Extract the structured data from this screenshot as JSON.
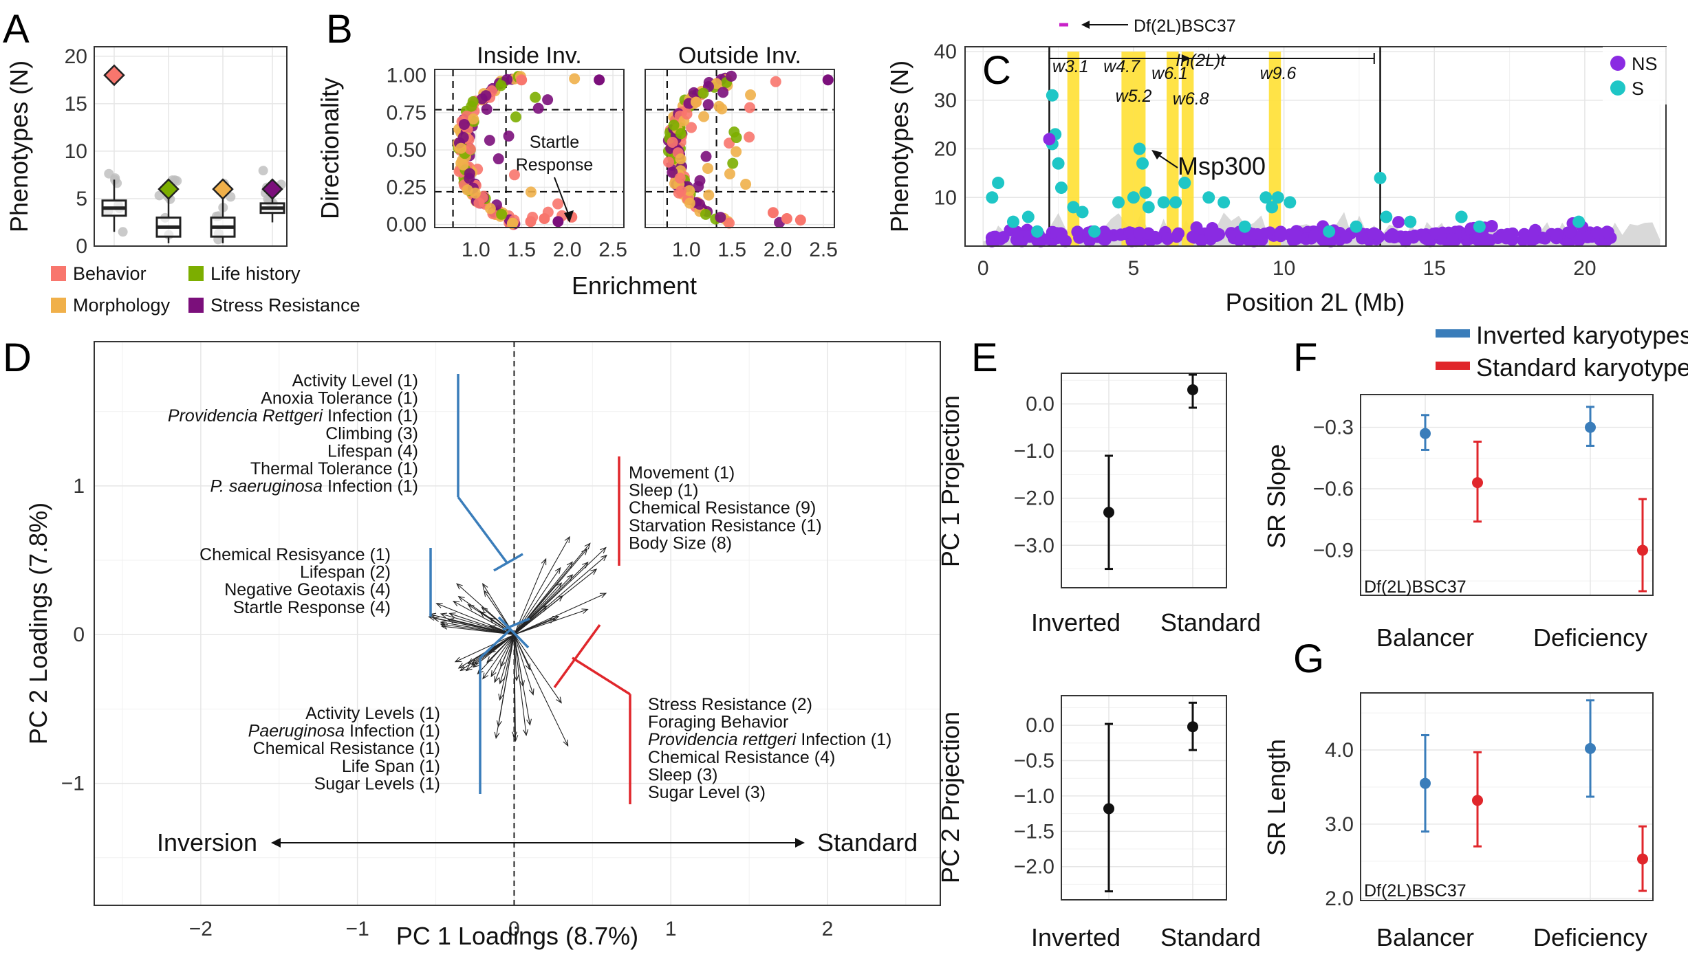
{
  "panel_letters": {
    "A": "A",
    "B": "B",
    "C": "C",
    "D": "D",
    "E": "E",
    "F": "F",
    "G": "G"
  },
  "colors": {
    "behavior": "#F8766D",
    "life_history": "#7CAE00",
    "morphology": "#F0B04A",
    "stress_resistance": "#7B0F7B",
    "ns": "#8A2BE2",
    "s": "#1EC6C6",
    "inverted": "#3A7DBA",
    "standard": "#E0262B",
    "highlight": "#FFE033",
    "deficiency_bar": "#C822C8"
  },
  "chart_data": [
    {
      "id": "A",
      "type": "box",
      "ylabel": "Phenotypes (N)",
      "yticks": [
        0,
        5,
        10,
        15,
        20
      ],
      "ylim": [
        0,
        21
      ],
      "categories": [
        "Behavior",
        "Life history",
        "Morphology",
        "Stress Resistance"
      ],
      "boxes": [
        {
          "q1": 3.2,
          "median": 4,
          "q3": 4.8,
          "lo": 1.5,
          "hi": 7,
          "highlight": 18
        },
        {
          "q1": 1,
          "median": 2,
          "q3": 3,
          "lo": 0.3,
          "hi": 5.5,
          "highlight": 6
        },
        {
          "q1": 1,
          "median": 2,
          "q3": 3,
          "lo": 0.3,
          "hi": 5,
          "highlight": 6
        },
        {
          "q1": 3.5,
          "median": 4,
          "q3": 4.5,
          "lo": 2.5,
          "hi": 6.5,
          "highlight": 6
        }
      ],
      "legend": [
        "Behavior",
        "Life history",
        "Morphology",
        "Stress Resistance"
      ]
    },
    {
      "id": "B",
      "type": "scatter",
      "xlabel": "Enrichment",
      "ylabel": "Directionality",
      "facets": [
        "Inside Inv.",
        "Outside Inv."
      ],
      "xticks": [
        1.0,
        1.5,
        2.0,
        2.5
      ],
      "yticks": [
        0.0,
        0.25,
        0.5,
        0.75,
        1.0
      ],
      "xlim": [
        0.55,
        2.62
      ],
      "ylim": [
        -0.02,
        1.04
      ],
      "annotation": "Startle Response"
    },
    {
      "id": "C",
      "type": "scatter",
      "xlabel": "Position 2L (Mb)",
      "ylabel": "Phenotypes (N)",
      "xticks": [
        0,
        5,
        10,
        15,
        20
      ],
      "yticks": [
        10,
        20,
        30,
        40
      ],
      "xlim": [
        -0.6,
        22.7
      ],
      "ylim": [
        0,
        41
      ],
      "series": [
        {
          "name": "NS"
        },
        {
          "name": "S"
        }
      ],
      "windows": [
        {
          "label": "w3.1",
          "start": 2.8,
          "end": 3.2
        },
        {
          "label": "w4.7",
          "start": 4.6,
          "end": 5.0
        },
        {
          "label": "w5.2",
          "start": 5.0,
          "end": 5.4
        },
        {
          "label": "w6.1",
          "start": 6.1,
          "end": 6.5
        },
        {
          "label": "w6.8",
          "start": 6.6,
          "end": 7.0
        },
        {
          "label": "w9.6",
          "start": 9.5,
          "end": 9.9
        }
      ],
      "inversion_label": "In(2L)t",
      "inversion": [
        2.2,
        13.2
      ],
      "deficiency_label": "Df(2L)BSC37",
      "msp_label": "Msp300"
    },
    {
      "id": "D",
      "type": "biplot",
      "xlabel": "PC 1 Loadings (8.7%)",
      "ylabel": "PC 2 Loadings (7.8%)",
      "xticks": [
        -2,
        -1,
        0,
        1,
        2
      ],
      "yticks": [
        -1,
        0,
        1
      ],
      "xlim": [
        -2.68,
        2.72
      ],
      "ylim": [
        -1.82,
        1.97
      ],
      "left_arrow_label": "Inversion",
      "right_arrow_label": "Standard",
      "upper_left": [
        "Activity Level (1)",
        "Anoxia Tolerance (1)",
        "Providencia Rettgeri Infection (1)",
        "Climbing (3)",
        "Lifespan (4)",
        "Thermal Tolerance (1)",
        "P. saeruginosa Infection (1)"
      ],
      "middle_left": [
        "Chemical Resisyance (1)",
        "Lifespan (2)",
        "Negative Geotaxis (4)",
        "Startle Response (4)"
      ],
      "lower_left": [
        "Activity Levels (1)",
        "Paeruginosa Infection (1)",
        "Chemical Resistance (1)",
        "Life Span (1)",
        "Sugar Levels (1)"
      ],
      "upper_right": [
        "Movement (1)",
        "Sleep (1)",
        "Chemical Resistance (9)",
        "Starvation Resistance (1)",
        "Body Size (8)"
      ],
      "lower_right": [
        "Stress Resistance (2)",
        "Foraging Behavior",
        "Providencia rettgeri Infection (1)",
        "Chemical Resistance (4)",
        "Sleep (3)",
        "Sugar Level (3)"
      ]
    },
    {
      "id": "E1",
      "type": "pointrange",
      "ylabel": "PC 1 Projection",
      "categories": [
        "Inverted",
        "Standard"
      ],
      "yticks": [
        -3.0,
        -2.0,
        -1.0,
        0.0
      ],
      "ylim": [
        -3.9,
        0.65
      ],
      "values": [
        {
          "mean": -2.3,
          "lo": -3.5,
          "hi": -1.1
        },
        {
          "mean": 0.3,
          "lo": -0.08,
          "hi": 0.62
        }
      ]
    },
    {
      "id": "E2",
      "type": "pointrange",
      "ylabel": "PC 2 Projection",
      "categories": [
        "Inverted",
        "Standard"
      ],
      "yticks": [
        -2.0,
        -1.5,
        -1.0,
        -0.5,
        0.0
      ],
      "ylim": [
        -2.47,
        0.42
      ],
      "values": [
        {
          "mean": -1.18,
          "lo": -2.35,
          "hi": 0.02
        },
        {
          "mean": -0.02,
          "lo": -0.35,
          "hi": 0.32
        }
      ]
    },
    {
      "id": "F",
      "type": "pointrange",
      "ylabel": "SR Slope",
      "categories": [
        "Balancer",
        "Deficiency"
      ],
      "yticks": [
        -0.9,
        -0.6,
        -0.3
      ],
      "ylim": [
        -1.12,
        -0.14
      ],
      "note": "Df(2L)BSC37",
      "legend": [
        "Inverted karyotypes",
        "Standard karyotypes"
      ],
      "series": [
        {
          "name": "Inverted karyotypes",
          "values": [
            {
              "mean": -0.33,
              "lo": -0.41,
              "hi": -0.24
            },
            {
              "mean": -0.3,
              "lo": -0.39,
              "hi": -0.2
            }
          ]
        },
        {
          "name": "Standard karyotypes",
          "values": [
            {
              "mean": -0.57,
              "lo": -0.76,
              "hi": -0.37
            },
            {
              "mean": -0.9,
              "lo": -1.1,
              "hi": -0.65
            }
          ]
        }
      ]
    },
    {
      "id": "G",
      "type": "pointrange",
      "ylabel": "SR Length",
      "categories": [
        "Balancer",
        "Deficiency"
      ],
      "yticks": [
        2.0,
        3.0,
        4.0
      ],
      "ylim": [
        1.97,
        4.77
      ],
      "note": "Df(2L)BSC37",
      "series": [
        {
          "name": "Inverted karyotypes",
          "values": [
            {
              "mean": 3.55,
              "lo": 2.9,
              "hi": 4.2
            },
            {
              "mean": 4.02,
              "lo": 3.37,
              "hi": 4.67
            }
          ]
        },
        {
          "name": "Standard karyotypes",
          "values": [
            {
              "mean": 3.32,
              "lo": 2.7,
              "hi": 3.97
            },
            {
              "mean": 2.53,
              "lo": 2.1,
              "hi": 2.97
            }
          ]
        }
      ]
    }
  ]
}
